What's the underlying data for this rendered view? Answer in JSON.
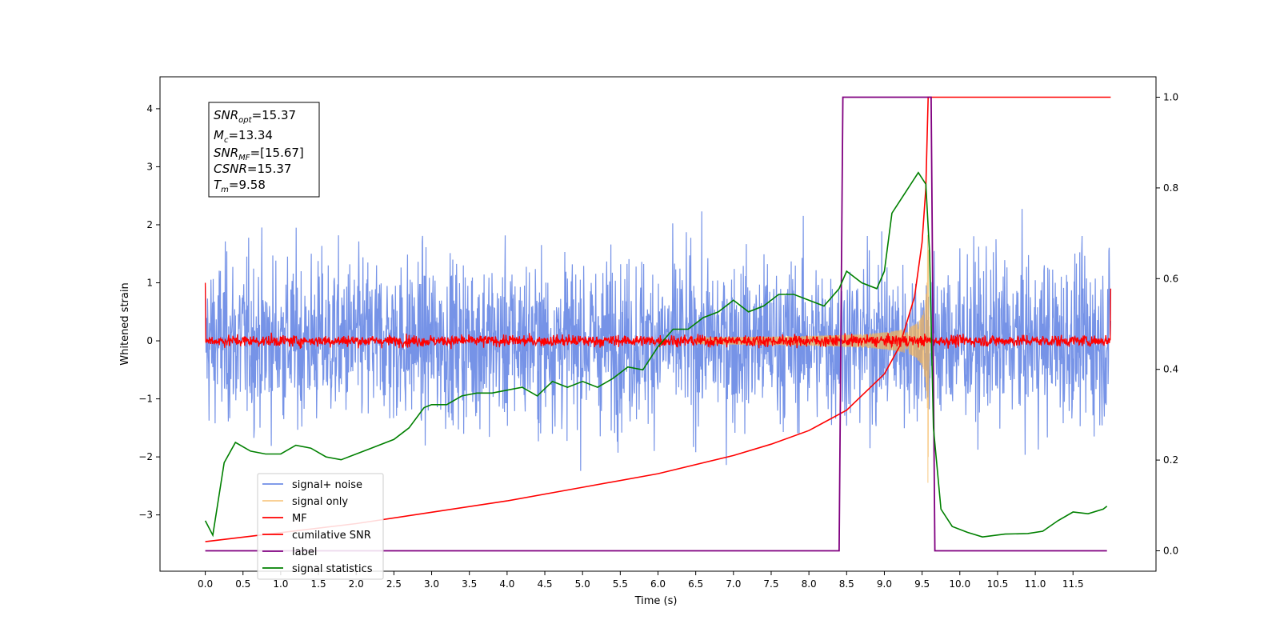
{
  "chart_data": {
    "type": "line",
    "xlabel": "Time (s)",
    "ylabel": "Whitened strain",
    "xlim": [
      -0.6,
      12.6
    ],
    "ylim": [
      -3.97,
      4.55
    ],
    "y2lim": [
      -0.045,
      1.045
    ],
    "grid": false,
    "x_ticks": [
      "0.0",
      "0.5",
      "1.0",
      "1.5",
      "2.0",
      "2.5",
      "3.0",
      "3.5",
      "4.0",
      "4.5",
      "5.0",
      "5.5",
      "6.0",
      "6.5",
      "7.0",
      "7.5",
      "8.0",
      "8.5",
      "9.0",
      "9.5",
      "10.0",
      "10.5",
      "11.0",
      "11.5"
    ],
    "y_ticks": [
      "4",
      "3",
      "2",
      "1",
      "0",
      "−1",
      "−2",
      "−3"
    ],
    "y2_ticks": [
      "1.0",
      "0.8",
      "0.6",
      "0.4",
      "0.2",
      "0.0"
    ],
    "legend_position": "lower-left",
    "legend": [
      {
        "label": "signal+ noise",
        "color": "#6f8de6"
      },
      {
        "label": "signal only",
        "color": "#f5b454"
      },
      {
        "label": "MF",
        "color": "#ff0000"
      },
      {
        "label": "cumilative SNR",
        "color": "#ff0000"
      },
      {
        "label": "label",
        "color": "#800080"
      },
      {
        "label": "signal statistics",
        "color": "#008000"
      }
    ],
    "annotation": {
      "snr_opt": {
        "sym": "SNR",
        "sub": "opt",
        "val": "=15.37"
      },
      "mc": {
        "sym": "M",
        "sub": "c",
        "val": "=13.34"
      },
      "snr_mf": {
        "sym": "SNR",
        "sub": "MF",
        "val": "=[15.67]"
      },
      "csnr": {
        "sym": "CSNR",
        "sub": "",
        "val": "=15.37"
      },
      "tm": {
        "sym": "T",
        "sub": "m",
        "val": "=9.58"
      }
    },
    "series": [
      {
        "name": "signal+ noise",
        "axis": "left",
        "color": "#6f8de6",
        "x_range": [
          0,
          12
        ],
        "envelope": [
          -2.5,
          3.5
        ]
      },
      {
        "name": "signal only",
        "axis": "left",
        "color": "#f5b454",
        "x_range": [
          0,
          12
        ],
        "peak_time": 9.58
      },
      {
        "name": "MF",
        "axis": "left",
        "color": "#ff0000",
        "x_range": [
          0,
          12
        ],
        "level": 0
      },
      {
        "name": "cumilative SNR",
        "axis": "right",
        "color": "#ff0000",
        "x": [
          0,
          1,
          2,
          3,
          4,
          5,
          6,
          7,
          7.5,
          8,
          8.5,
          9,
          9.2,
          9.4,
          9.5,
          9.55,
          9.58,
          12
        ],
        "y": [
          0.02,
          0.04,
          0.06,
          0.085,
          0.11,
          0.14,
          0.17,
          0.21,
          0.235,
          0.265,
          0.31,
          0.39,
          0.45,
          0.56,
          0.68,
          0.8,
          1.0,
          1.0
        ]
      },
      {
        "name": "label",
        "axis": "right",
        "color": "#800080",
        "x": [
          0,
          8.4,
          8.45,
          9.62,
          9.67,
          11.95
        ],
        "y": [
          0,
          0,
          1,
          1,
          0,
          0
        ]
      },
      {
        "name": "signal statistics",
        "axis": "left",
        "color": "#008000",
        "x": [
          0,
          0.1,
          0.25,
          0.4,
          0.6,
          0.8,
          1.0,
          1.2,
          1.4,
          1.6,
          1.8,
          2.0,
          2.2,
          2.5,
          2.7,
          2.9,
          3.0,
          3.2,
          3.4,
          3.6,
          3.8,
          4.0,
          4.2,
          4.4,
          4.6,
          4.8,
          5.0,
          5.2,
          5.4,
          5.6,
          5.8,
          6.0,
          6.2,
          6.4,
          6.6,
          6.8,
          7.0,
          7.2,
          7.4,
          7.6,
          7.8,
          8.0,
          8.2,
          8.4,
          8.5,
          8.7,
          8.9,
          9.0,
          9.1,
          9.3,
          9.45,
          9.55,
          9.6,
          9.65,
          9.75,
          9.9,
          10.1,
          10.3,
          10.6,
          10.9,
          11.1,
          11.3,
          11.5,
          11.7,
          11.9,
          11.95
        ],
        "y": [
          -3.1,
          -3.35,
          -2.1,
          -1.75,
          -1.9,
          -1.95,
          -1.95,
          -1.8,
          -1.85,
          -2.0,
          -2.05,
          -1.95,
          -1.85,
          -1.7,
          -1.5,
          -1.15,
          -1.1,
          -1.1,
          -0.95,
          -0.9,
          -0.9,
          -0.85,
          -0.8,
          -0.95,
          -0.7,
          -0.8,
          -0.7,
          -0.8,
          -0.65,
          -0.45,
          -0.5,
          -0.1,
          0.2,
          0.2,
          0.4,
          0.5,
          0.7,
          0.5,
          0.6,
          0.8,
          0.8,
          0.7,
          0.6,
          0.9,
          1.2,
          1.0,
          0.9,
          1.2,
          2.2,
          2.6,
          2.9,
          2.7,
          1.5,
          -1.5,
          -2.9,
          -3.2,
          -3.3,
          -3.38,
          -3.33,
          -3.32,
          -3.28,
          -3.1,
          -2.95,
          -2.98,
          -2.9,
          -2.85
        ]
      }
    ]
  }
}
